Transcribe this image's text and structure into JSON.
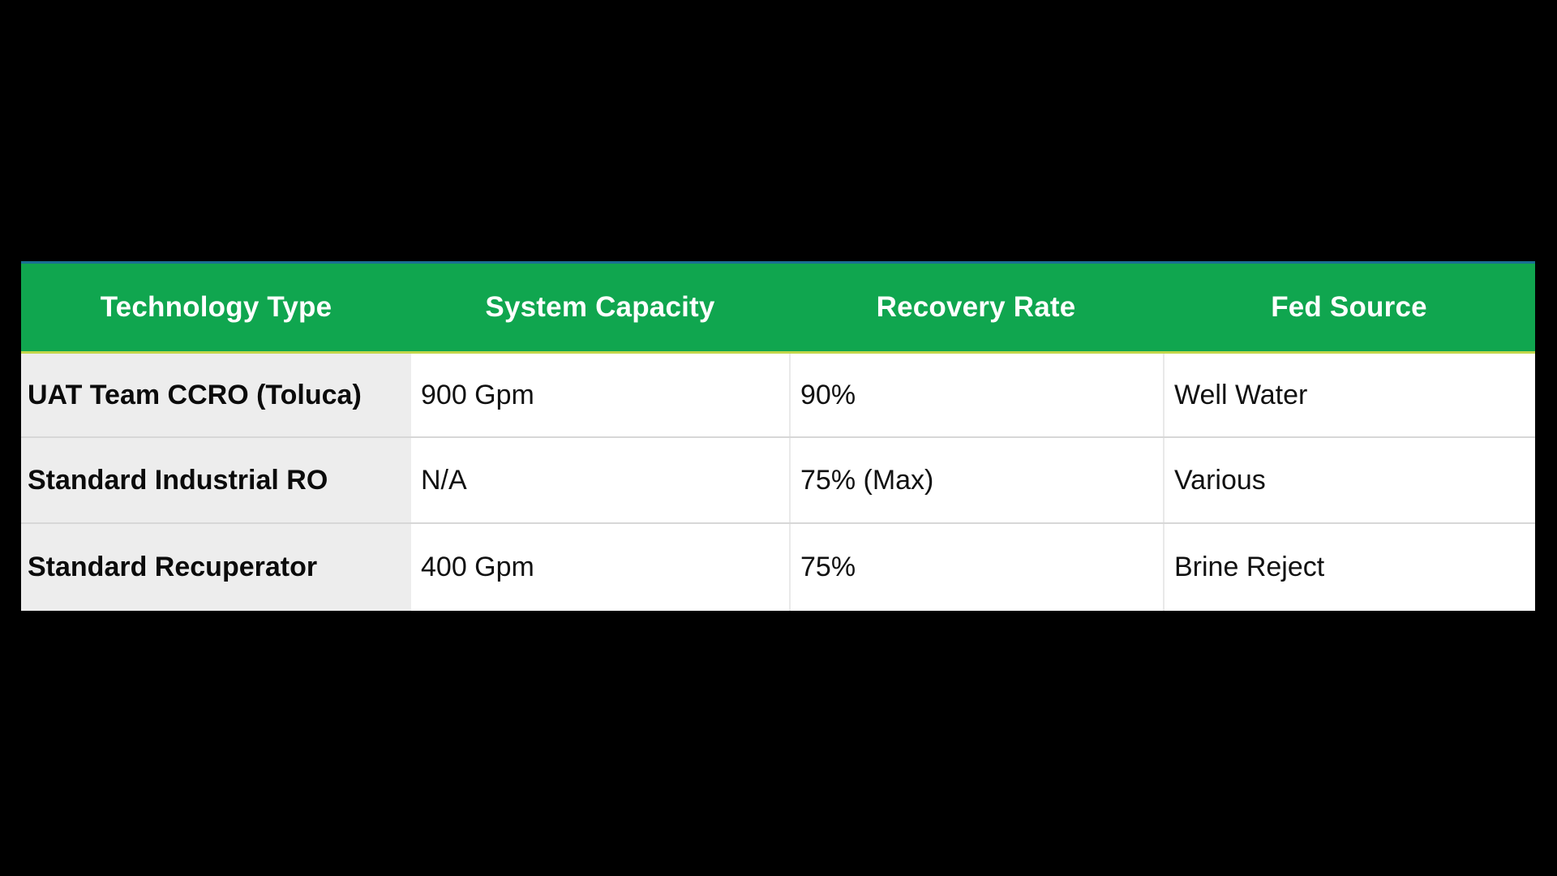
{
  "table": {
    "header": {
      "columns": [
        "Technology Type",
        "System Capacity",
        "Recovery Rate",
        "Fed Source"
      ]
    },
    "rows": [
      [
        "UAT Team CCRO (Toluca)",
        "900 Gpm",
        "90%",
        "Well Water"
      ],
      [
        "Standard Industrial RO",
        "N/A",
        "75% (Max)",
        "Various"
      ],
      [
        "Standard Recuperator",
        "400 Gpm",
        "75%",
        "Brine Reject"
      ]
    ],
    "colors": {
      "slide_bg": "#000000",
      "header_green": "#10A64F",
      "header_top_line": "#1B6F94",
      "header_bottom_line": "#C2D64B",
      "first_col_bg": "#EDEDED",
      "row_divider": "#D7D7D7",
      "col_divider": "#E9E9E9",
      "header_text": "#FFFFFF",
      "body_text": "#111111"
    }
  }
}
